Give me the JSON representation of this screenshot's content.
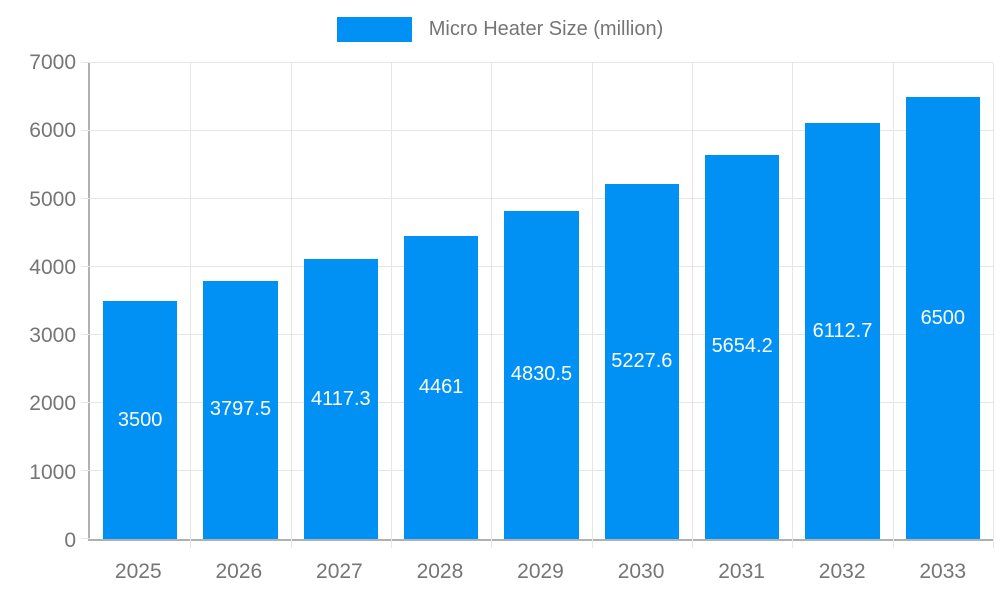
{
  "legend": {
    "label": "Micro Heater Size (million)"
  },
  "colors": {
    "background": "#ffffff",
    "bar": "#0191f5",
    "bar_label": "#ffffff",
    "text": "#757575",
    "grid": "#e6e6e6",
    "axis": "#b0b0b0"
  },
  "chart_data": {
    "type": "bar",
    "title": "Micro Heater Size (million)",
    "categories": [
      "2025",
      "2026",
      "2027",
      "2028",
      "2029",
      "2030",
      "2031",
      "2032",
      "2033"
    ],
    "values": [
      3500,
      3797.5,
      4117.3,
      4461,
      4830.5,
      5227.6,
      5654.2,
      6112.7,
      6500
    ],
    "value_labels": [
      "3500",
      "3797.5",
      "4117.3",
      "4461",
      "4830.5",
      "5227.6",
      "5654.2",
      "6112.7",
      "6500"
    ],
    "series_name": "Micro Heater Size (million)",
    "xlabel": "",
    "ylabel": "",
    "ylim": [
      0,
      7000
    ],
    "yticks": [
      0,
      1000,
      2000,
      3000,
      4000,
      5000,
      6000,
      7000
    ],
    "grid": true,
    "legend_position": "top",
    "bar_width_fraction": 0.74
  }
}
